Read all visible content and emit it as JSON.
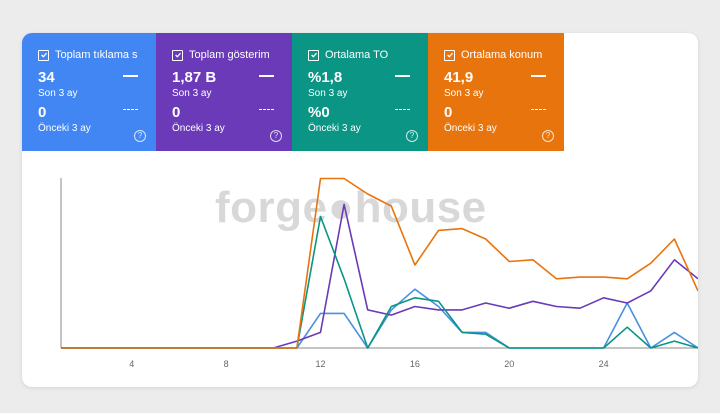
{
  "metrics": [
    {
      "title": "Toplam tıklama s...",
      "value": "34",
      "value_label": "Son 3 ay",
      "prev_value": "0",
      "prev_label": "Önceki 3 ay",
      "color": "#4286f4"
    },
    {
      "title": "Toplam gösterim ...",
      "value": "1,87 B",
      "value_label": "Son 3 ay",
      "prev_value": "0",
      "prev_label": "Önceki 3 ay",
      "color": "#6a3ab8"
    },
    {
      "title": "Ortalama TO",
      "value": "%1,8",
      "value_label": "Son 3 ay",
      "prev_value": "%0",
      "prev_label": "Önceki 3 ay",
      "color": "#0a9585"
    },
    {
      "title": "Ortalama konum",
      "value": "41,9",
      "value_label": "Son 3 ay",
      "prev_value": "0",
      "prev_label": "Önceki 3 ay",
      "color": "#e8740e"
    }
  ],
  "watermark": "forge●house",
  "help_glyph": "?",
  "chart_data": {
    "type": "line",
    "x": [
      1,
      2,
      3,
      4,
      5,
      6,
      7,
      8,
      9,
      10,
      11,
      12,
      13,
      14,
      15,
      16,
      17,
      18,
      19,
      20,
      21,
      22,
      23,
      24,
      25,
      26,
      27,
      28
    ],
    "xticks": [
      "4",
      "8",
      "12",
      "16",
      "20",
      "24"
    ],
    "xtick_values": [
      4,
      8,
      12,
      16,
      20,
      24
    ],
    "series": [
      {
        "color": "#4a90e2",
        "values": [
          0,
          0,
          0,
          0,
          0,
          0,
          0,
          0,
          0,
          0,
          0,
          20,
          20,
          0,
          22,
          34,
          24,
          9,
          9,
          0,
          0,
          0,
          0,
          0,
          26,
          0,
          9,
          0
        ]
      },
      {
        "color": "#6a3ab8",
        "values": [
          0,
          0,
          0,
          0,
          0,
          0,
          0,
          0,
          0,
          0,
          4,
          9,
          83,
          22,
          19,
          24,
          22,
          22,
          26,
          23,
          27,
          24,
          23,
          29,
          26,
          33,
          51,
          40
        ]
      },
      {
        "color": "#0a9585",
        "values": [
          0,
          0,
          0,
          0,
          0,
          0,
          0,
          0,
          0,
          0,
          0,
          76,
          40,
          0,
          24,
          29,
          27,
          9,
          8,
          0,
          0,
          0,
          0,
          0,
          12,
          0,
          4,
          0
        ]
      },
      {
        "color": "#e8740e",
        "values": [
          0,
          0,
          0,
          0,
          0,
          0,
          0,
          0,
          0,
          0,
          0,
          98,
          98,
          89,
          82,
          48,
          68,
          69,
          63,
          50,
          51,
          40,
          41,
          41,
          40,
          49,
          63,
          33
        ]
      }
    ]
  }
}
